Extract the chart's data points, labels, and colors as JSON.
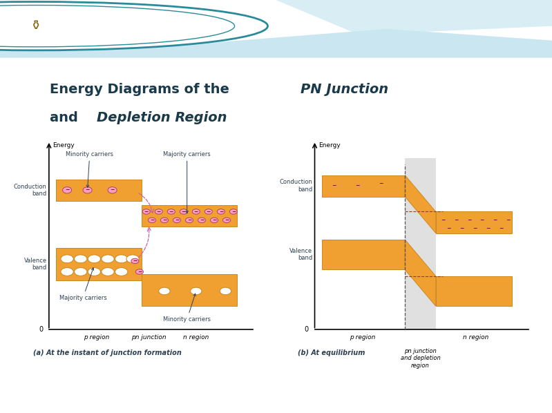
{
  "bg_color": "#ffffff",
  "header_bg": "#7ec8d8",
  "header_wave1": "#a8d8e8",
  "header_wave2": "#c8e8f0",
  "title_line1_plain": "Energy Diagrams of the ",
  "title_line1_italic": "PN Junction",
  "title_line2_plain": "and ",
  "title_line2_italic": "Depletion Region",
  "title_color": "#1a3a4a",
  "orange": "#F0A030",
  "orange_edge": "#cc8820",
  "gray_dep": "#c8c8c8",
  "caption_a": "(a) At the instant of junction formation",
  "caption_b": "(b) At equilibrium",
  "text_color": "#2c3e50",
  "axis_color": "#333333"
}
